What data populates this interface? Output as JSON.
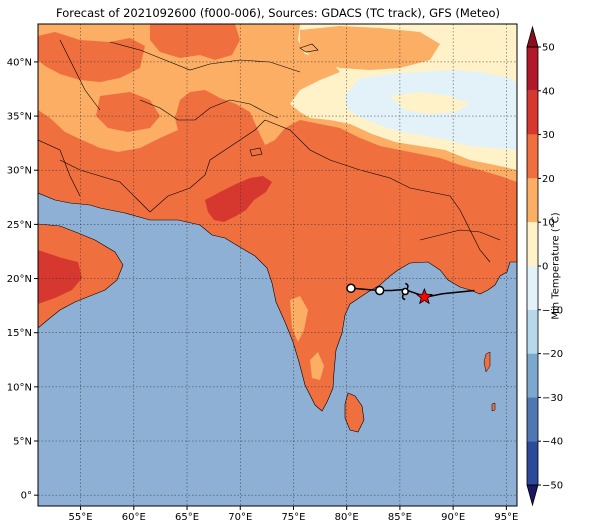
{
  "title": "Forecast of 2021092600 (f000-006), Sources: GDACS (TC track), GFS (Meteo)",
  "map": {
    "lon_range": [
      51,
      96
    ],
    "lat_range": [
      -1,
      43.5
    ],
    "lon_ticks": [
      {
        "value": 55,
        "label": "55°E"
      },
      {
        "value": 60,
        "label": "60°E"
      },
      {
        "value": 65,
        "label": "65°E"
      },
      {
        "value": 70,
        "label": "70°E"
      },
      {
        "value": 75,
        "label": "75°E"
      },
      {
        "value": 80,
        "label": "80°E"
      },
      {
        "value": 85,
        "label": "85°E"
      },
      {
        "value": 90,
        "label": "90°E"
      },
      {
        "value": 95,
        "label": "95°E"
      }
    ],
    "lat_ticks": [
      {
        "value": 0,
        "label": "0°"
      },
      {
        "value": 5,
        "label": "5°N"
      },
      {
        "value": 10,
        "label": "10°N"
      },
      {
        "value": 15,
        "label": "15°N"
      },
      {
        "value": 20,
        "label": "20°N"
      },
      {
        "value": 25,
        "label": "25°N"
      },
      {
        "value": 30,
        "label": "30°N"
      },
      {
        "value": 35,
        "label": "35°N"
      },
      {
        "value": 40,
        "label": "40°N"
      }
    ],
    "gridlines": true,
    "ocean_color": "#8fb0d5",
    "track": {
      "points": [
        [
          92.0,
          18.9
        ],
        [
          89.0,
          18.6
        ],
        [
          87.5,
          18.3
        ],
        [
          86.0,
          18.8
        ],
        [
          85.5,
          19.0
        ],
        [
          84.2,
          18.9
        ],
        [
          83.0,
          18.9
        ],
        [
          80.5,
          19.1
        ]
      ],
      "current_position": {
        "lon": 87.3,
        "lat": 18.3,
        "marker": "star",
        "color": "#ff0000"
      },
      "forecast_markers": [
        {
          "lon": 85.5,
          "lat": 18.8,
          "symbol": "cyclone"
        },
        {
          "lon": 83.1,
          "lat": 18.9,
          "symbol": "circle"
        },
        {
          "lon": 80.4,
          "lat": 19.1,
          "symbol": "circle"
        }
      ]
    }
  },
  "colorbar": {
    "label": "Min Temperature (°C)",
    "ticks": [
      "50",
      "40",
      "30",
      "20",
      "10",
      "0",
      "−10",
      "−20",
      "−30",
      "−40",
      "−50"
    ],
    "colors_top_to_bottom": [
      "#b2182b",
      "#d6382f",
      "#ef6f3f",
      "#fbae64",
      "#fff2c9",
      "#e2f2f8",
      "#b6d8e9",
      "#7ca8ce",
      "#4f78b2",
      "#2d4a9a"
    ],
    "extend_top_color": "#8c0d1c",
    "extend_bottom_color": "#1b1760"
  }
}
